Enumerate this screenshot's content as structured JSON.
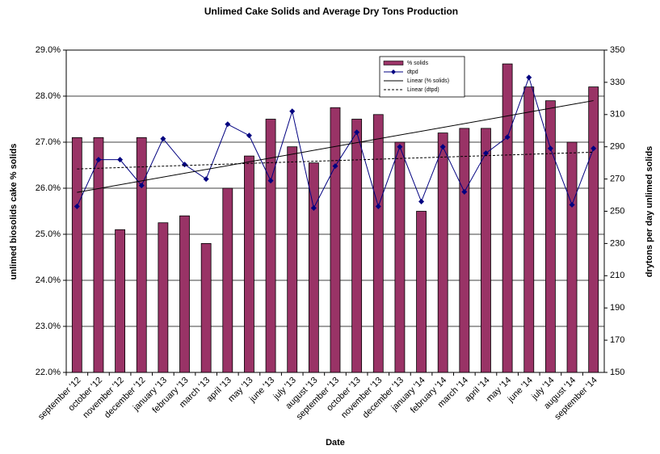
{
  "chart_data": {
    "type": "bar-line",
    "title": "Unlimed Cake Solids and Average Dry Tons Production",
    "xlabel": "Date",
    "ylabel": "unlimed biosolids cake % solids",
    "y2label": "drytons per day unlimed solids",
    "categories": [
      "september '12",
      "october '12",
      "november '12",
      "december '12",
      "january '13",
      "february '13",
      "march '13",
      "april '13",
      "may '13",
      "june '13",
      "july '13",
      "august '13",
      "september '13",
      "october '13",
      "november '13",
      "december '13",
      "january '14",
      "february '14",
      "march '14",
      "april '14",
      "may '14",
      "june '14",
      "july '14",
      "august '14",
      "september '14"
    ],
    "series": [
      {
        "name": "% solids",
        "type": "bar",
        "color": "#993366",
        "values": [
          27.1,
          27.1,
          25.1,
          27.1,
          25.25,
          25.4,
          24.8,
          26.0,
          26.7,
          27.5,
          26.9,
          26.55,
          27.75,
          27.5,
          27.6,
          27.0,
          25.5,
          27.2,
          27.3,
          27.3,
          28.7,
          28.2,
          27.9,
          27.0,
          28.2
        ],
        "trendline": {
          "name": "Linear (% solids)",
          "dash": false
        }
      },
      {
        "name": "dtpd",
        "type": "line",
        "axis": "y2",
        "color": "#000080",
        "values": [
          253,
          282,
          282,
          266,
          295,
          279,
          270,
          304,
          297,
          269,
          312,
          252,
          278,
          299,
          253,
          290,
          256,
          290,
          262,
          286,
          296,
          333,
          289,
          254,
          289
        ],
        "trendline": {
          "name": "Linear (dtpd)",
          "dash": true
        }
      }
    ],
    "ylim": [
      22,
      29
    ],
    "yticks": [
      {
        "value": 22,
        "label": "22.0%"
      },
      {
        "value": 23,
        "label": "23.0%"
      },
      {
        "value": 24,
        "label": "24.0%"
      },
      {
        "value": 25,
        "label": "25.0%"
      },
      {
        "value": 26,
        "label": "26.0%"
      },
      {
        "value": 27,
        "label": "27.0%"
      },
      {
        "value": 28,
        "label": "28.0%"
      },
      {
        "value": 29,
        "label": "29.0%"
      }
    ],
    "y2lim": [
      150,
      350
    ],
    "y2ticks": [
      150,
      170,
      190,
      210,
      230,
      250,
      270,
      290,
      310,
      330,
      350
    ],
    "grid": true,
    "legend": "top-right"
  }
}
